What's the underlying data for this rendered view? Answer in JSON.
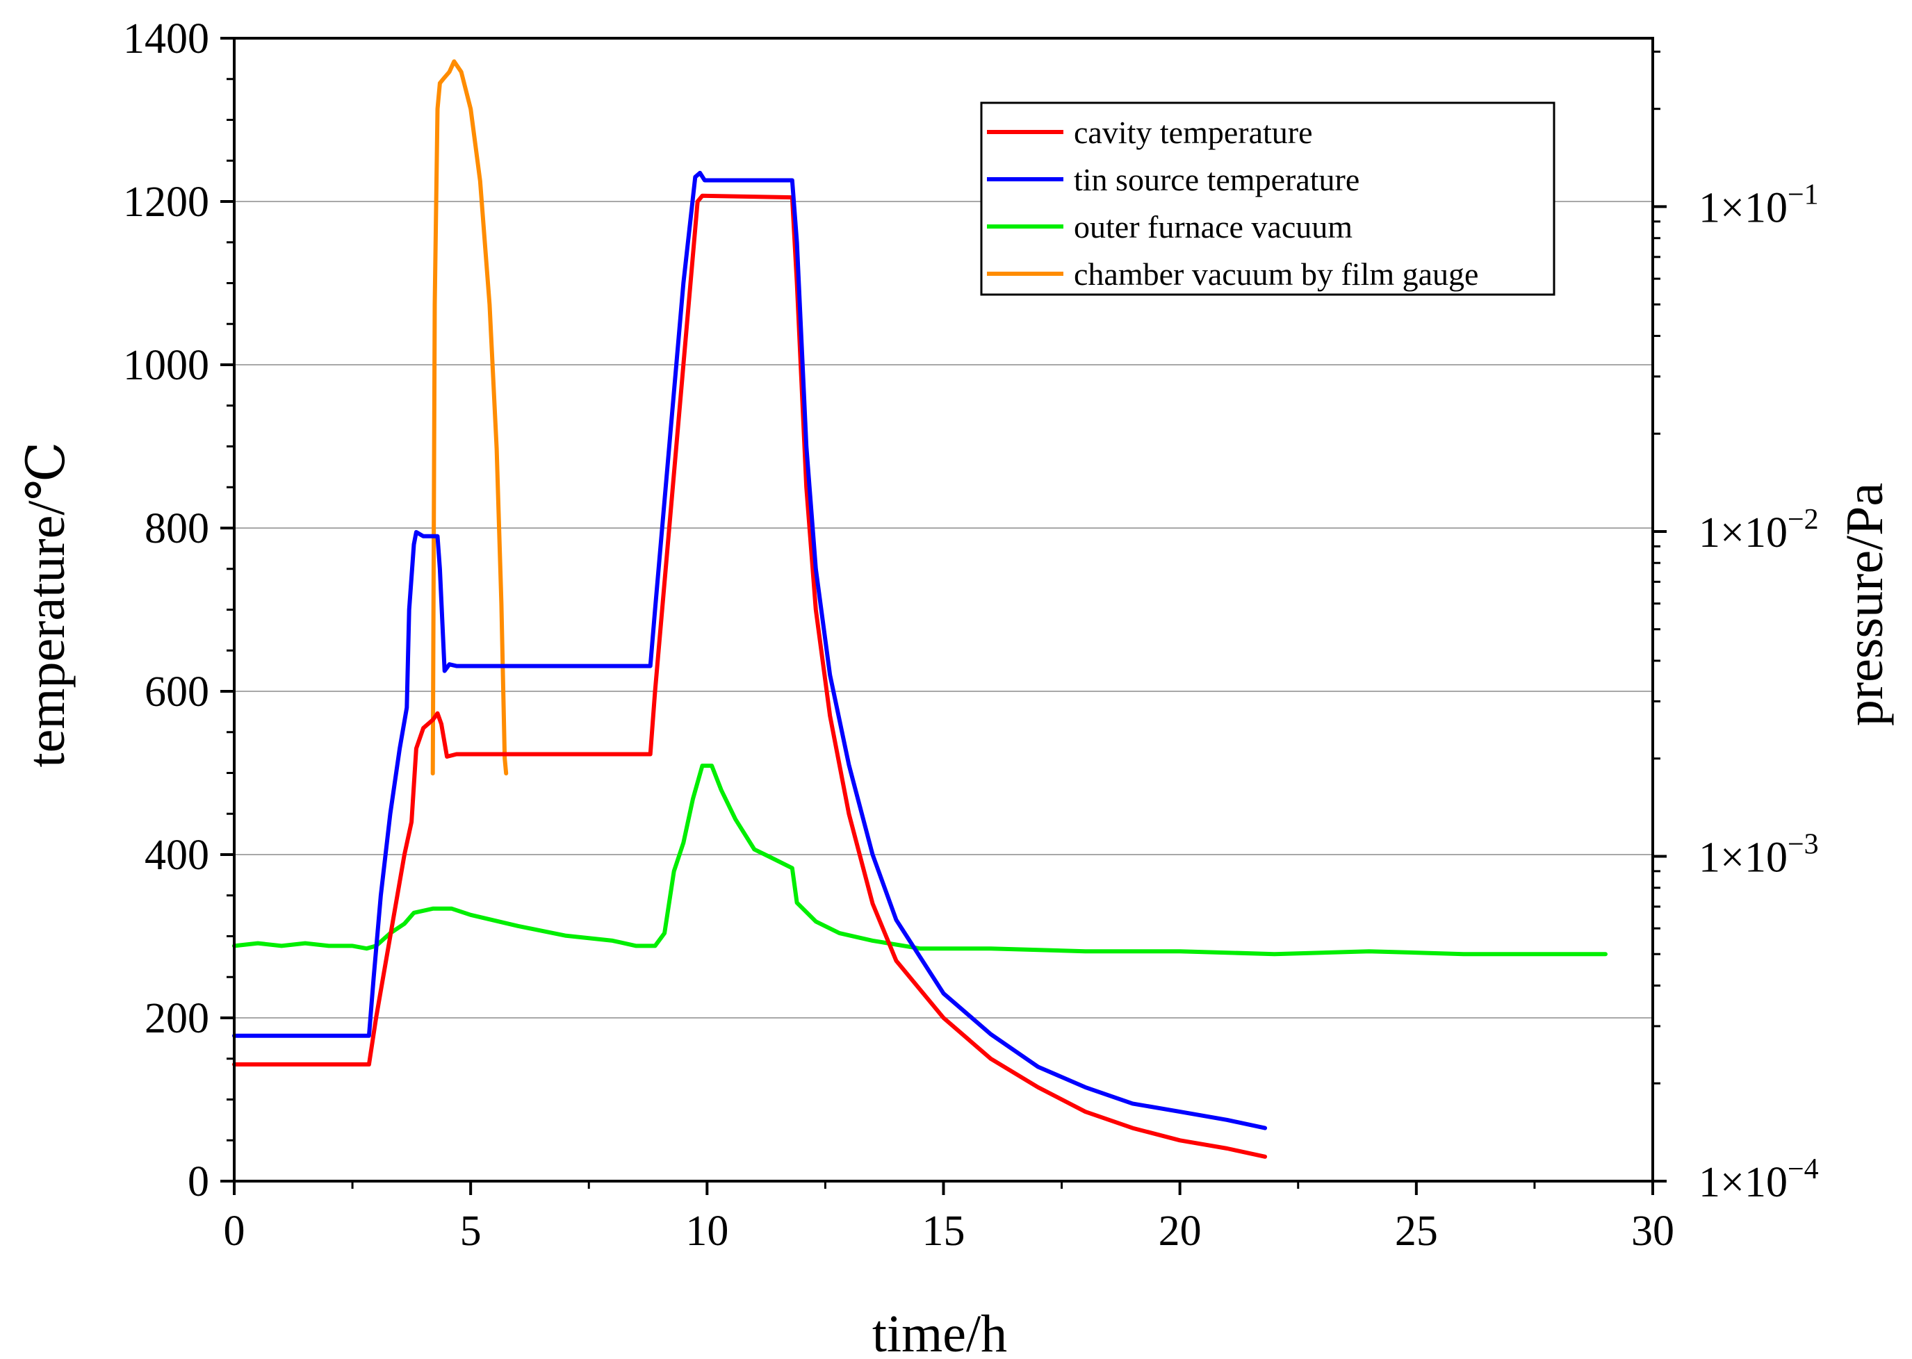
{
  "chart_data": {
    "type": "line",
    "title": "",
    "xlabel": "time/h",
    "ylabel": "temperature/℃",
    "y2label": "pressure/Pa",
    "xlim": [
      0,
      30
    ],
    "ylim": [
      0,
      1400
    ],
    "y2lim": [
      0.0001,
      0.33
    ],
    "y2scale": "log",
    "grid": "horizontal",
    "legend_position": "top-right",
    "x_ticks": [
      0,
      5,
      10,
      15,
      20,
      25,
      30
    ],
    "x_tick_labels": [
      "0",
      "5",
      "10",
      "15",
      "20",
      "25",
      "30"
    ],
    "y_ticks": [
      0,
      200,
      400,
      600,
      800,
      1000,
      1200,
      1400
    ],
    "y_tick_labels": [
      "0",
      "200",
      "400",
      "600",
      "800",
      "1000",
      "1200",
      "1400"
    ],
    "y2_ticks": [
      {
        "value": 0.0001,
        "mantissa": "1×10",
        "exponent": "−4"
      },
      {
        "value": 0.001,
        "mantissa": "1×10",
        "exponent": "−3"
      },
      {
        "value": 0.01,
        "mantissa": "1×10",
        "exponent": "−2"
      },
      {
        "value": 0.1,
        "mantissa": "1×10",
        "exponent": "−1"
      }
    ],
    "series": [
      {
        "name": "cavity temperature",
        "color": "#ff0000",
        "axis": "left",
        "points": [
          [
            0,
            143
          ],
          [
            2.85,
            143
          ],
          [
            3.0,
            200
          ],
          [
            3.3,
            300
          ],
          [
            3.6,
            400
          ],
          [
            3.75,
            440
          ],
          [
            3.85,
            530
          ],
          [
            4.0,
            555
          ],
          [
            4.2,
            565
          ],
          [
            4.3,
            573
          ],
          [
            4.38,
            560
          ],
          [
            4.5,
            520
          ],
          [
            4.7,
            523
          ],
          [
            5,
            523
          ],
          [
            8.8,
            523
          ],
          [
            8.9,
            600
          ],
          [
            9.2,
            800
          ],
          [
            9.5,
            1000
          ],
          [
            9.8,
            1200
          ],
          [
            9.9,
            1207
          ],
          [
            11.8,
            1205
          ],
          [
            11.9,
            1100
          ],
          [
            12.1,
            850
          ],
          [
            12.3,
            700
          ],
          [
            12.6,
            570
          ],
          [
            13,
            450
          ],
          [
            13.5,
            340
          ],
          [
            14,
            270
          ],
          [
            15,
            200
          ],
          [
            16,
            150
          ],
          [
            17,
            115
          ],
          [
            18,
            85
          ],
          [
            19,
            65
          ],
          [
            20,
            50
          ],
          [
            21,
            40
          ],
          [
            21.8,
            30
          ]
        ]
      },
      {
        "name": "tin source temperature",
        "color": "#0000ff",
        "axis": "left",
        "points": [
          [
            0,
            178
          ],
          [
            2.85,
            178
          ],
          [
            2.95,
            250
          ],
          [
            3.1,
            350
          ],
          [
            3.3,
            450
          ],
          [
            3.5,
            530
          ],
          [
            3.65,
            580
          ],
          [
            3.7,
            700
          ],
          [
            3.8,
            780
          ],
          [
            3.85,
            795
          ],
          [
            4.0,
            790
          ],
          [
            4.3,
            790
          ],
          [
            4.35,
            750
          ],
          [
            4.45,
            625
          ],
          [
            4.55,
            633
          ],
          [
            4.7,
            631
          ],
          [
            6,
            631
          ],
          [
            8.8,
            631
          ],
          [
            8.9,
            700
          ],
          [
            9.2,
            900
          ],
          [
            9.5,
            1100
          ],
          [
            9.75,
            1230
          ],
          [
            9.85,
            1235
          ],
          [
            9.95,
            1226
          ],
          [
            11.8,
            1226
          ],
          [
            11.9,
            1150
          ],
          [
            12.1,
            900
          ],
          [
            12.3,
            750
          ],
          [
            12.6,
            620
          ],
          [
            13,
            510
          ],
          [
            13.5,
            400
          ],
          [
            14,
            320
          ],
          [
            15,
            230
          ],
          [
            16,
            180
          ],
          [
            17,
            140
          ],
          [
            18,
            115
          ],
          [
            19,
            95
          ],
          [
            20,
            85
          ],
          [
            21,
            75
          ],
          [
            21.8,
            65
          ]
        ]
      },
      {
        "name": "outer furnace vacuum",
        "color": "#00ee00",
        "axis": "right",
        "points": [
          [
            0,
            0.00053
          ],
          [
            0.5,
            0.00054
          ],
          [
            1,
            0.00053
          ],
          [
            1.5,
            0.00054
          ],
          [
            2,
            0.00053
          ],
          [
            2.5,
            0.00053
          ],
          [
            2.8,
            0.00052
          ],
          [
            3.0,
            0.00053
          ],
          [
            3.3,
            0.00058
          ],
          [
            3.6,
            0.00062
          ],
          [
            3.8,
            0.00067
          ],
          [
            4.2,
            0.00069
          ],
          [
            4.6,
            0.00069
          ],
          [
            5,
            0.00066
          ],
          [
            6,
            0.00061
          ],
          [
            7,
            0.00057
          ],
          [
            8,
            0.00055
          ],
          [
            8.5,
            0.00053
          ],
          [
            8.9,
            0.00053
          ],
          [
            9.1,
            0.00058
          ],
          [
            9.3,
            0.0009
          ],
          [
            9.5,
            0.0011
          ],
          [
            9.7,
            0.0015
          ],
          [
            9.9,
            0.0019
          ],
          [
            10.1,
            0.0019
          ],
          [
            10.3,
            0.0016
          ],
          [
            10.6,
            0.0013
          ],
          [
            11,
            0.00105
          ],
          [
            11.3,
            0.001
          ],
          [
            11.8,
            0.00092
          ],
          [
            11.9,
            0.00072
          ],
          [
            12.3,
            0.00063
          ],
          [
            12.8,
            0.00058
          ],
          [
            13.5,
            0.00055
          ],
          [
            14.5,
            0.00052
          ],
          [
            16,
            0.00052
          ],
          [
            18,
            0.00051
          ],
          [
            20,
            0.00051
          ],
          [
            22,
            0.0005
          ],
          [
            24,
            0.00051
          ],
          [
            26,
            0.0005
          ],
          [
            28,
            0.0005
          ],
          [
            29,
            0.0005
          ]
        ]
      },
      {
        "name": "chamber vacuum by film gauge",
        "color": "#ff8c00",
        "axis": "right",
        "points": [
          [
            4.2,
            0.0018
          ],
          [
            4.24,
            0.05
          ],
          [
            4.3,
            0.2
          ],
          [
            4.35,
            0.24
          ],
          [
            4.45,
            0.25
          ],
          [
            4.55,
            0.26
          ],
          [
            4.65,
            0.28
          ],
          [
            4.8,
            0.26
          ],
          [
            5.0,
            0.2
          ],
          [
            5.2,
            0.12
          ],
          [
            5.4,
            0.05
          ],
          [
            5.55,
            0.018
          ],
          [
            5.65,
            0.006
          ],
          [
            5.72,
            0.002
          ],
          [
            5.75,
            0.0018
          ]
        ]
      }
    ]
  }
}
